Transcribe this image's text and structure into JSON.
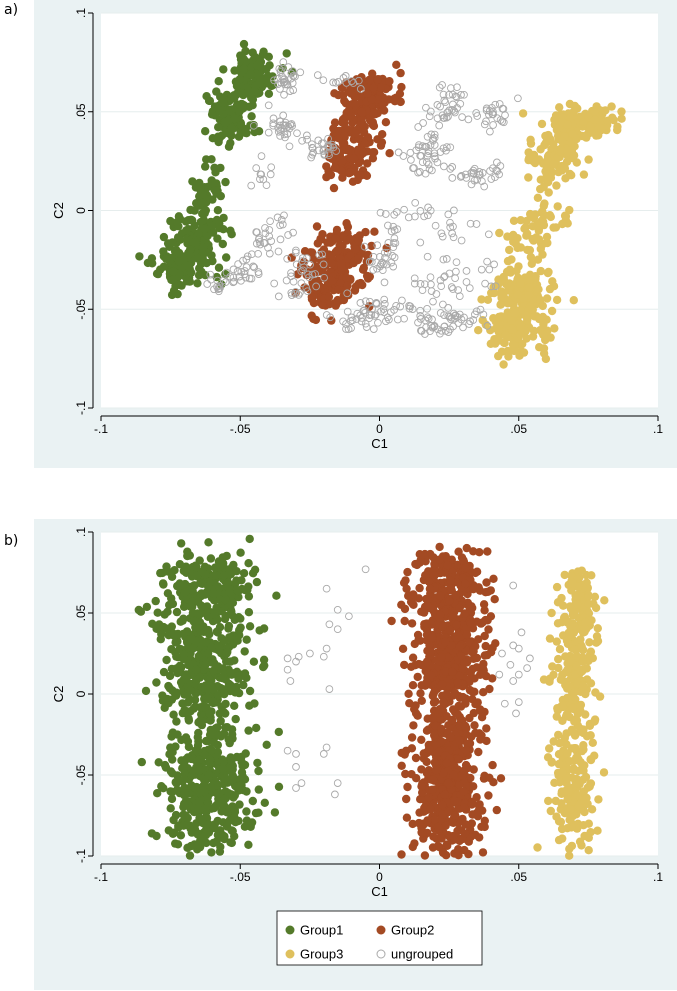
{
  "panels": [
    {
      "id": "a",
      "label": "a)"
    },
    {
      "id": "b",
      "label": "b)"
    }
  ],
  "colors": {
    "background": "#eaf2f3",
    "plot_area": "#ffffff",
    "gridline": "#e6eded",
    "Group1": "#547a2a",
    "Group2": "#a34a23",
    "Group3": "#dfc05d",
    "ungrouped": "#a9a9a9"
  },
  "chart_data": [
    {
      "panel": "a",
      "type": "scatter",
      "xlabel": "C1",
      "ylabel": "C2",
      "xlim": [
        -0.1,
        0.1
      ],
      "ylim": [
        -0.1,
        0.1
      ],
      "xticks": [
        {
          "value": -0.1,
          "label": "-.1"
        },
        {
          "value": -0.05,
          "label": "-.05"
        },
        {
          "value": 0,
          "label": "0"
        },
        {
          "value": 0.05,
          "label": ".05"
        },
        {
          "value": 0.1,
          "label": ".1"
        }
      ],
      "yticks": [
        {
          "value": -0.1,
          "label": "-.1"
        },
        {
          "value": -0.05,
          "label": "-.05"
        },
        {
          "value": 0,
          "label": "0"
        },
        {
          "value": 0.05,
          "label": ".05"
        },
        {
          "value": 0.1,
          "label": ".1"
        }
      ],
      "grid": true,
      "series": [
        {
          "name": "Group1",
          "color": "#547a2a",
          "marker": "filled",
          "clusters": [
            {
              "x0": -0.0455,
              "y0": 0.078,
              "x1": -0.0465,
              "y1": 0.062,
              "sx": 0.004,
              "sy": 0.0035,
              "n": 110
            },
            {
              "x0": -0.054,
              "y0": 0.058,
              "x1": -0.053,
              "y1": 0.04,
              "sx": 0.0045,
              "sy": 0.004,
              "n": 120
            },
            {
              "x0": -0.058,
              "y0": 0.022,
              "x1": -0.063,
              "y1": 0.002,
              "sx": 0.0025,
              "sy": 0.004,
              "n": 40
            },
            {
              "x0": -0.063,
              "y0": -0.005,
              "x1": -0.073,
              "y1": -0.035,
              "sx": 0.0055,
              "sy": 0.005,
              "n": 200
            }
          ]
        },
        {
          "name": "Group2",
          "color": "#a34a23",
          "marker": "filled",
          "clusters": [
            {
              "x0": -0.0025,
              "y0": 0.066,
              "x1": -0.006,
              "y1": 0.045,
              "sx": 0.005,
              "sy": 0.004,
              "n": 150
            },
            {
              "x0": -0.0085,
              "y0": 0.042,
              "x1": -0.0125,
              "y1": 0.017,
              "sx": 0.0045,
              "sy": 0.0045,
              "n": 130
            },
            {
              "x0": -0.0105,
              "y0": -0.015,
              "x1": -0.0205,
              "y1": -0.047,
              "sx": 0.0055,
              "sy": 0.005,
              "n": 220
            }
          ]
        },
        {
          "name": "Group3",
          "color": "#dfc05d",
          "marker": "filled",
          "clusters": [
            {
              "x0": 0.08,
              "y0": 0.048,
              "x1": 0.073,
              "y1": 0.042,
              "sx": 0.0035,
              "sy": 0.003,
              "n": 70
            },
            {
              "x0": 0.069,
              "y0": 0.048,
              "x1": 0.062,
              "y1": 0.02,
              "sx": 0.0045,
              "sy": 0.0045,
              "n": 180
            },
            {
              "x0": 0.062,
              "y0": 0.002,
              "x1": 0.05,
              "y1": -0.022,
              "sx": 0.0035,
              "sy": 0.004,
              "n": 60
            },
            {
              "x0": 0.052,
              "y0": -0.035,
              "x1": 0.048,
              "y1": -0.068,
              "sx": 0.0055,
              "sy": 0.006,
              "n": 240
            }
          ]
        },
        {
          "name": "ungrouped",
          "color": "#a9a9a9",
          "marker": "hollow",
          "clusters": [
            {
              "x0": -0.03,
              "y0": 0.072,
              "x1": -0.036,
              "y1": 0.062,
              "sx": 0.0025,
              "sy": 0.003,
              "n": 30
            },
            {
              "x0": -0.038,
              "y0": 0.046,
              "x1": -0.032,
              "y1": 0.038,
              "sx": 0.003,
              "sy": 0.003,
              "n": 30
            },
            {
              "x0": -0.022,
              "y0": 0.035,
              "x1": -0.018,
              "y1": 0.03,
              "sx": 0.003,
              "sy": 0.003,
              "n": 25
            },
            {
              "x0": -0.018,
              "y0": 0.068,
              "x1": -0.01,
              "y1": 0.065,
              "sx": 0.003,
              "sy": 0.002,
              "n": 12
            },
            {
              "x0": -0.04,
              "y0": 0.02,
              "x1": -0.042,
              "y1": 0.015,
              "sx": 0.004,
              "sy": 0.005,
              "n": 10
            },
            {
              "x0": 0.028,
              "y0": 0.06,
              "x1": 0.02,
              "y1": 0.045,
              "sx": 0.003,
              "sy": 0.004,
              "n": 35
            },
            {
              "x0": 0.042,
              "y0": 0.05,
              "x1": 0.038,
              "y1": 0.045,
              "sx": 0.004,
              "sy": 0.003,
              "n": 25
            },
            {
              "x0": 0.02,
              "y0": 0.035,
              "x1": 0.015,
              "y1": 0.022,
              "sx": 0.004,
              "sy": 0.004,
              "n": 45
            },
            {
              "x0": 0.04,
              "y0": 0.022,
              "x1": 0.03,
              "y1": 0.015,
              "sx": 0.004,
              "sy": 0.003,
              "n": 30
            },
            {
              "x0": 0.01,
              "y0": 0.0,
              "x1": 0.005,
              "y1": -0.01,
              "sx": 0.005,
              "sy": 0.005,
              "n": 20
            },
            {
              "x0": 0.025,
              "y0": -0.005,
              "x1": 0.03,
              "y1": -0.015,
              "sx": 0.006,
              "sy": 0.006,
              "n": 15
            },
            {
              "x0": -0.038,
              "y0": -0.008,
              "x1": -0.045,
              "y1": -0.02,
              "sx": 0.004,
              "sy": 0.005,
              "n": 30
            },
            {
              "x0": -0.048,
              "y0": -0.028,
              "x1": -0.058,
              "y1": -0.04,
              "sx": 0.004,
              "sy": 0.003,
              "n": 35
            },
            {
              "x0": -0.025,
              "y0": -0.018,
              "x1": -0.032,
              "y1": -0.045,
              "sx": 0.004,
              "sy": 0.004,
              "n": 35
            },
            {
              "x0": 0.002,
              "y0": -0.02,
              "x1": -0.002,
              "y1": -0.03,
              "sx": 0.004,
              "sy": 0.004,
              "n": 25
            },
            {
              "x0": 0.015,
              "y0": -0.03,
              "x1": 0.025,
              "y1": -0.04,
              "sx": 0.005,
              "sy": 0.004,
              "n": 20
            },
            {
              "x0": 0.005,
              "y0": -0.05,
              "x1": -0.01,
              "y1": -0.055,
              "sx": 0.005,
              "sy": 0.004,
              "n": 55
            },
            {
              "x0": 0.03,
              "y0": -0.055,
              "x1": 0.018,
              "y1": -0.058,
              "sx": 0.005,
              "sy": 0.004,
              "n": 55
            },
            {
              "x0": 0.03,
              "y0": -0.02,
              "x1": 0.035,
              "y1": -0.04,
              "sx": 0.006,
              "sy": 0.006,
              "n": 15
            }
          ]
        }
      ]
    },
    {
      "panel": "b",
      "type": "scatter",
      "xlabel": "C1",
      "ylabel": "C2",
      "xlim": [
        -0.1,
        0.1
      ],
      "ylim": [
        -0.1,
        0.1
      ],
      "xticks": [
        {
          "value": -0.1,
          "label": "-.1"
        },
        {
          "value": -0.05,
          "label": "-.05"
        },
        {
          "value": 0,
          "label": "0"
        },
        {
          "value": 0.05,
          "label": ".05"
        },
        {
          "value": 0.1,
          "label": ".1"
        }
      ],
      "yticks": [
        {
          "value": -0.1,
          "label": "-.1"
        },
        {
          "value": -0.05,
          "label": "-.05"
        },
        {
          "value": 0,
          "label": "0"
        },
        {
          "value": 0.05,
          "label": ".05"
        },
        {
          "value": 0.1,
          "label": ".1"
        }
      ],
      "grid": true,
      "legend": {
        "placement": "bottom",
        "entries": [
          "Group1",
          "Group2",
          "Group3",
          "ungrouped"
        ]
      },
      "series": [
        {
          "name": "Group1",
          "color": "#547a2a",
          "marker": "filled",
          "clusters": [
            {
              "x0": -0.062,
              "y0": 0.08,
              "x1": -0.062,
              "y1": 0.058,
              "sx": 0.0075,
              "sy": 0.006,
              "n": 140
            },
            {
              "x0": -0.062,
              "y0": 0.055,
              "x1": -0.062,
              "y1": -0.01,
              "sx": 0.0085,
              "sy": 0.012,
              "n": 420
            },
            {
              "x0": -0.062,
              "y0": -0.03,
              "x1": -0.062,
              "y1": -0.088,
              "sx": 0.0085,
              "sy": 0.013,
              "n": 380
            }
          ]
        },
        {
          "name": "Group2",
          "color": "#a34a23",
          "marker": "filled",
          "clusters": [
            {
              "x0": 0.025,
              "y0": 0.085,
              "x1": 0.025,
              "y1": 0.06,
              "sx": 0.006,
              "sy": 0.005,
              "n": 120
            },
            {
              "x0": 0.025,
              "y0": 0.06,
              "x1": 0.025,
              "y1": 0.0,
              "sx": 0.0065,
              "sy": 0.012,
              "n": 460
            },
            {
              "x0": 0.025,
              "y0": -0.02,
              "x1": 0.025,
              "y1": -0.09,
              "sx": 0.0065,
              "sy": 0.014,
              "n": 460
            }
          ]
        },
        {
          "name": "Group3",
          "color": "#dfc05d",
          "marker": "filled",
          "clusters": [
            {
              "x0": 0.072,
              "y0": 0.072,
              "x1": 0.07,
              "y1": 0.04,
              "sx": 0.0035,
              "sy": 0.006,
              "n": 90
            },
            {
              "x0": 0.07,
              "y0": 0.035,
              "x1": 0.07,
              "y1": -0.005,
              "sx": 0.004,
              "sy": 0.009,
              "n": 130
            },
            {
              "x0": 0.07,
              "y0": -0.025,
              "x1": 0.07,
              "y1": -0.09,
              "sx": 0.004,
              "sy": 0.013,
              "n": 170
            }
          ]
        },
        {
          "name": "ungrouped",
          "color": "#a9a9a9",
          "marker": "hollow",
          "points": [
            [
              -0.005,
              0.077
            ],
            [
              -0.019,
              0.065
            ],
            [
              -0.015,
              0.052
            ],
            [
              -0.011,
              0.048
            ],
            [
              -0.015,
              0.04
            ],
            [
              -0.018,
              0.043
            ],
            [
              -0.019,
              0.028
            ],
            [
              -0.02,
              0.023
            ],
            [
              -0.025,
              0.025
            ],
            [
              -0.029,
              0.023
            ],
            [
              -0.033,
              0.022
            ],
            [
              -0.03,
              0.02
            ],
            [
              -0.033,
              0.015
            ],
            [
              -0.032,
              0.008
            ],
            [
              -0.018,
              0.003
            ],
            [
              -0.033,
              -0.035
            ],
            [
              -0.03,
              -0.037
            ],
            [
              -0.019,
              -0.033
            ],
            [
              -0.02,
              -0.037
            ],
            [
              -0.03,
              -0.045
            ],
            [
              -0.028,
              -0.055
            ],
            [
              -0.03,
              -0.058
            ],
            [
              -0.015,
              -0.055
            ],
            [
              -0.016,
              -0.062
            ],
            [
              0.048,
              0.067
            ],
            [
              0.051,
              0.038
            ],
            [
              0.048,
              0.03
            ],
            [
              0.05,
              0.028
            ],
            [
              0.044,
              0.025
            ],
            [
              0.054,
              0.022
            ],
            [
              0.047,
              0.018
            ],
            [
              0.053,
              0.016
            ],
            [
              0.05,
              0.012
            ],
            [
              0.043,
              0.012
            ],
            [
              0.048,
              0.008
            ],
            [
              0.05,
              -0.005
            ],
            [
              0.045,
              -0.006
            ],
            [
              0.049,
              -0.012
            ]
          ]
        }
      ]
    }
  ]
}
